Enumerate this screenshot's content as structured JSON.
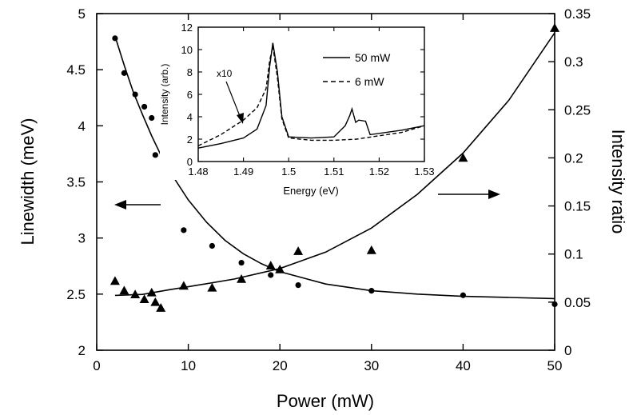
{
  "chart_data": [
    {
      "type": "scatter",
      "xlabel": "Power (mW)",
      "ylabel": "Linewidth (meV)",
      "y2label": "Intensity ratio",
      "xlim": [
        0,
        50
      ],
      "ylim": [
        2,
        5
      ],
      "y2lim": [
        0,
        0.35
      ],
      "xticks": [
        "0",
        "10",
        "20",
        "30",
        "40",
        "50"
      ],
      "yticks": [
        "2",
        "2.5",
        "3",
        "3.5",
        "4",
        "4.5",
        "5"
      ],
      "y2ticks": [
        "0",
        "0.05",
        "0.1",
        "0.15",
        "0.2",
        "0.25",
        "0.3",
        "0.35"
      ],
      "grid": false,
      "series": [
        {
          "marker": "circle",
          "axis": "left",
          "x": [
            2,
            3,
            4.2,
            5.2,
            6,
            6.4,
            7.3,
            9.5,
            12.6,
            15.8,
            19,
            22,
            30,
            40,
            50
          ],
          "y": [
            4.78,
            4.47,
            4.28,
            4.17,
            4.07,
            3.74,
            3.61,
            3.07,
            2.93,
            2.78,
            2.67,
            2.58,
            2.53,
            2.49,
            2.41
          ]
        },
        {
          "marker": "triangle",
          "axis": "right",
          "x": [
            2,
            3,
            4.2,
            5.2,
            6,
            6.4,
            7,
            9.5,
            12.6,
            15.8,
            19,
            20,
            22,
            30,
            40,
            50
          ],
          "y": [
            0.072,
            0.062,
            0.058,
            0.053,
            0.06,
            0.05,
            0.044,
            0.067,
            0.065,
            0.074,
            0.088,
            0.084,
            0.103,
            0.104,
            0.2,
            0.335
          ]
        }
      ],
      "fits": [
        {
          "axis": "left",
          "x": [
            2,
            3,
            4,
            5,
            6,
            7,
            8,
            10,
            12,
            14,
            16,
            18,
            20,
            25,
            30,
            35,
            40,
            45,
            50
          ],
          "y": [
            4.8,
            4.54,
            4.3,
            4.1,
            3.91,
            3.74,
            3.59,
            3.34,
            3.14,
            2.98,
            2.86,
            2.77,
            2.7,
            2.59,
            2.53,
            2.5,
            2.48,
            2.47,
            2.46
          ]
        },
        {
          "axis": "right",
          "x": [
            2,
            5,
            8,
            10,
            15,
            20,
            25,
            30,
            35,
            40,
            45,
            50
          ],
          "y": [
            0.057,
            0.058,
            0.063,
            0.066,
            0.074,
            0.085,
            0.102,
            0.127,
            0.162,
            0.205,
            0.26,
            0.33
          ]
        }
      ],
      "annotations": [
        {
          "type": "arrow",
          "direction": "left",
          "target_axis": "left"
        },
        {
          "type": "arrow",
          "direction": "right",
          "target_axis": "right"
        }
      ]
    },
    {
      "type": "line",
      "inset": true,
      "xlabel": "Energy (eV)",
      "ylabel": "Intensity (arb.)",
      "xlim": [
        1.48,
        1.53
      ],
      "ylim": [
        0,
        12
      ],
      "xticks": [
        "1.48",
        "1.49",
        "1.5",
        "1.51",
        "1.52",
        "1.53"
      ],
      "yticks": [
        "0",
        "2",
        "4",
        "6",
        "8",
        "10",
        "12"
      ],
      "legend_position": "top-right",
      "annotation": "x10",
      "series": [
        {
          "name": "50 mW",
          "style": "solid",
          "x": [
            1.48,
            1.485,
            1.49,
            1.493,
            1.495,
            1.4958,
            1.4965,
            1.4975,
            1.4985,
            1.5,
            1.505,
            1.51,
            1.5125,
            1.5135,
            1.514,
            1.5148,
            1.5155,
            1.517,
            1.518,
            1.525,
            1.53
          ],
          "y": [
            1.2,
            1.6,
            2.1,
            2.9,
            5.0,
            8.5,
            10.6,
            8.0,
            4.0,
            2.2,
            2.1,
            2.2,
            3.2,
            4.1,
            4.7,
            3.5,
            3.7,
            3.6,
            2.4,
            2.8,
            3.2
          ]
        },
        {
          "name": "6 mW",
          "style": "dashed",
          "x": [
            1.48,
            1.485,
            1.49,
            1.493,
            1.495,
            1.4958,
            1.4965,
            1.4975,
            1.4985,
            1.5,
            1.505,
            1.51,
            1.515,
            1.52,
            1.525,
            1.53
          ],
          "y": [
            1.4,
            2.4,
            3.7,
            4.8,
            6.5,
            9.0,
            10.3,
            7.5,
            3.8,
            2.1,
            1.9,
            1.9,
            2.0,
            2.3,
            2.6,
            3.2
          ]
        }
      ]
    }
  ]
}
